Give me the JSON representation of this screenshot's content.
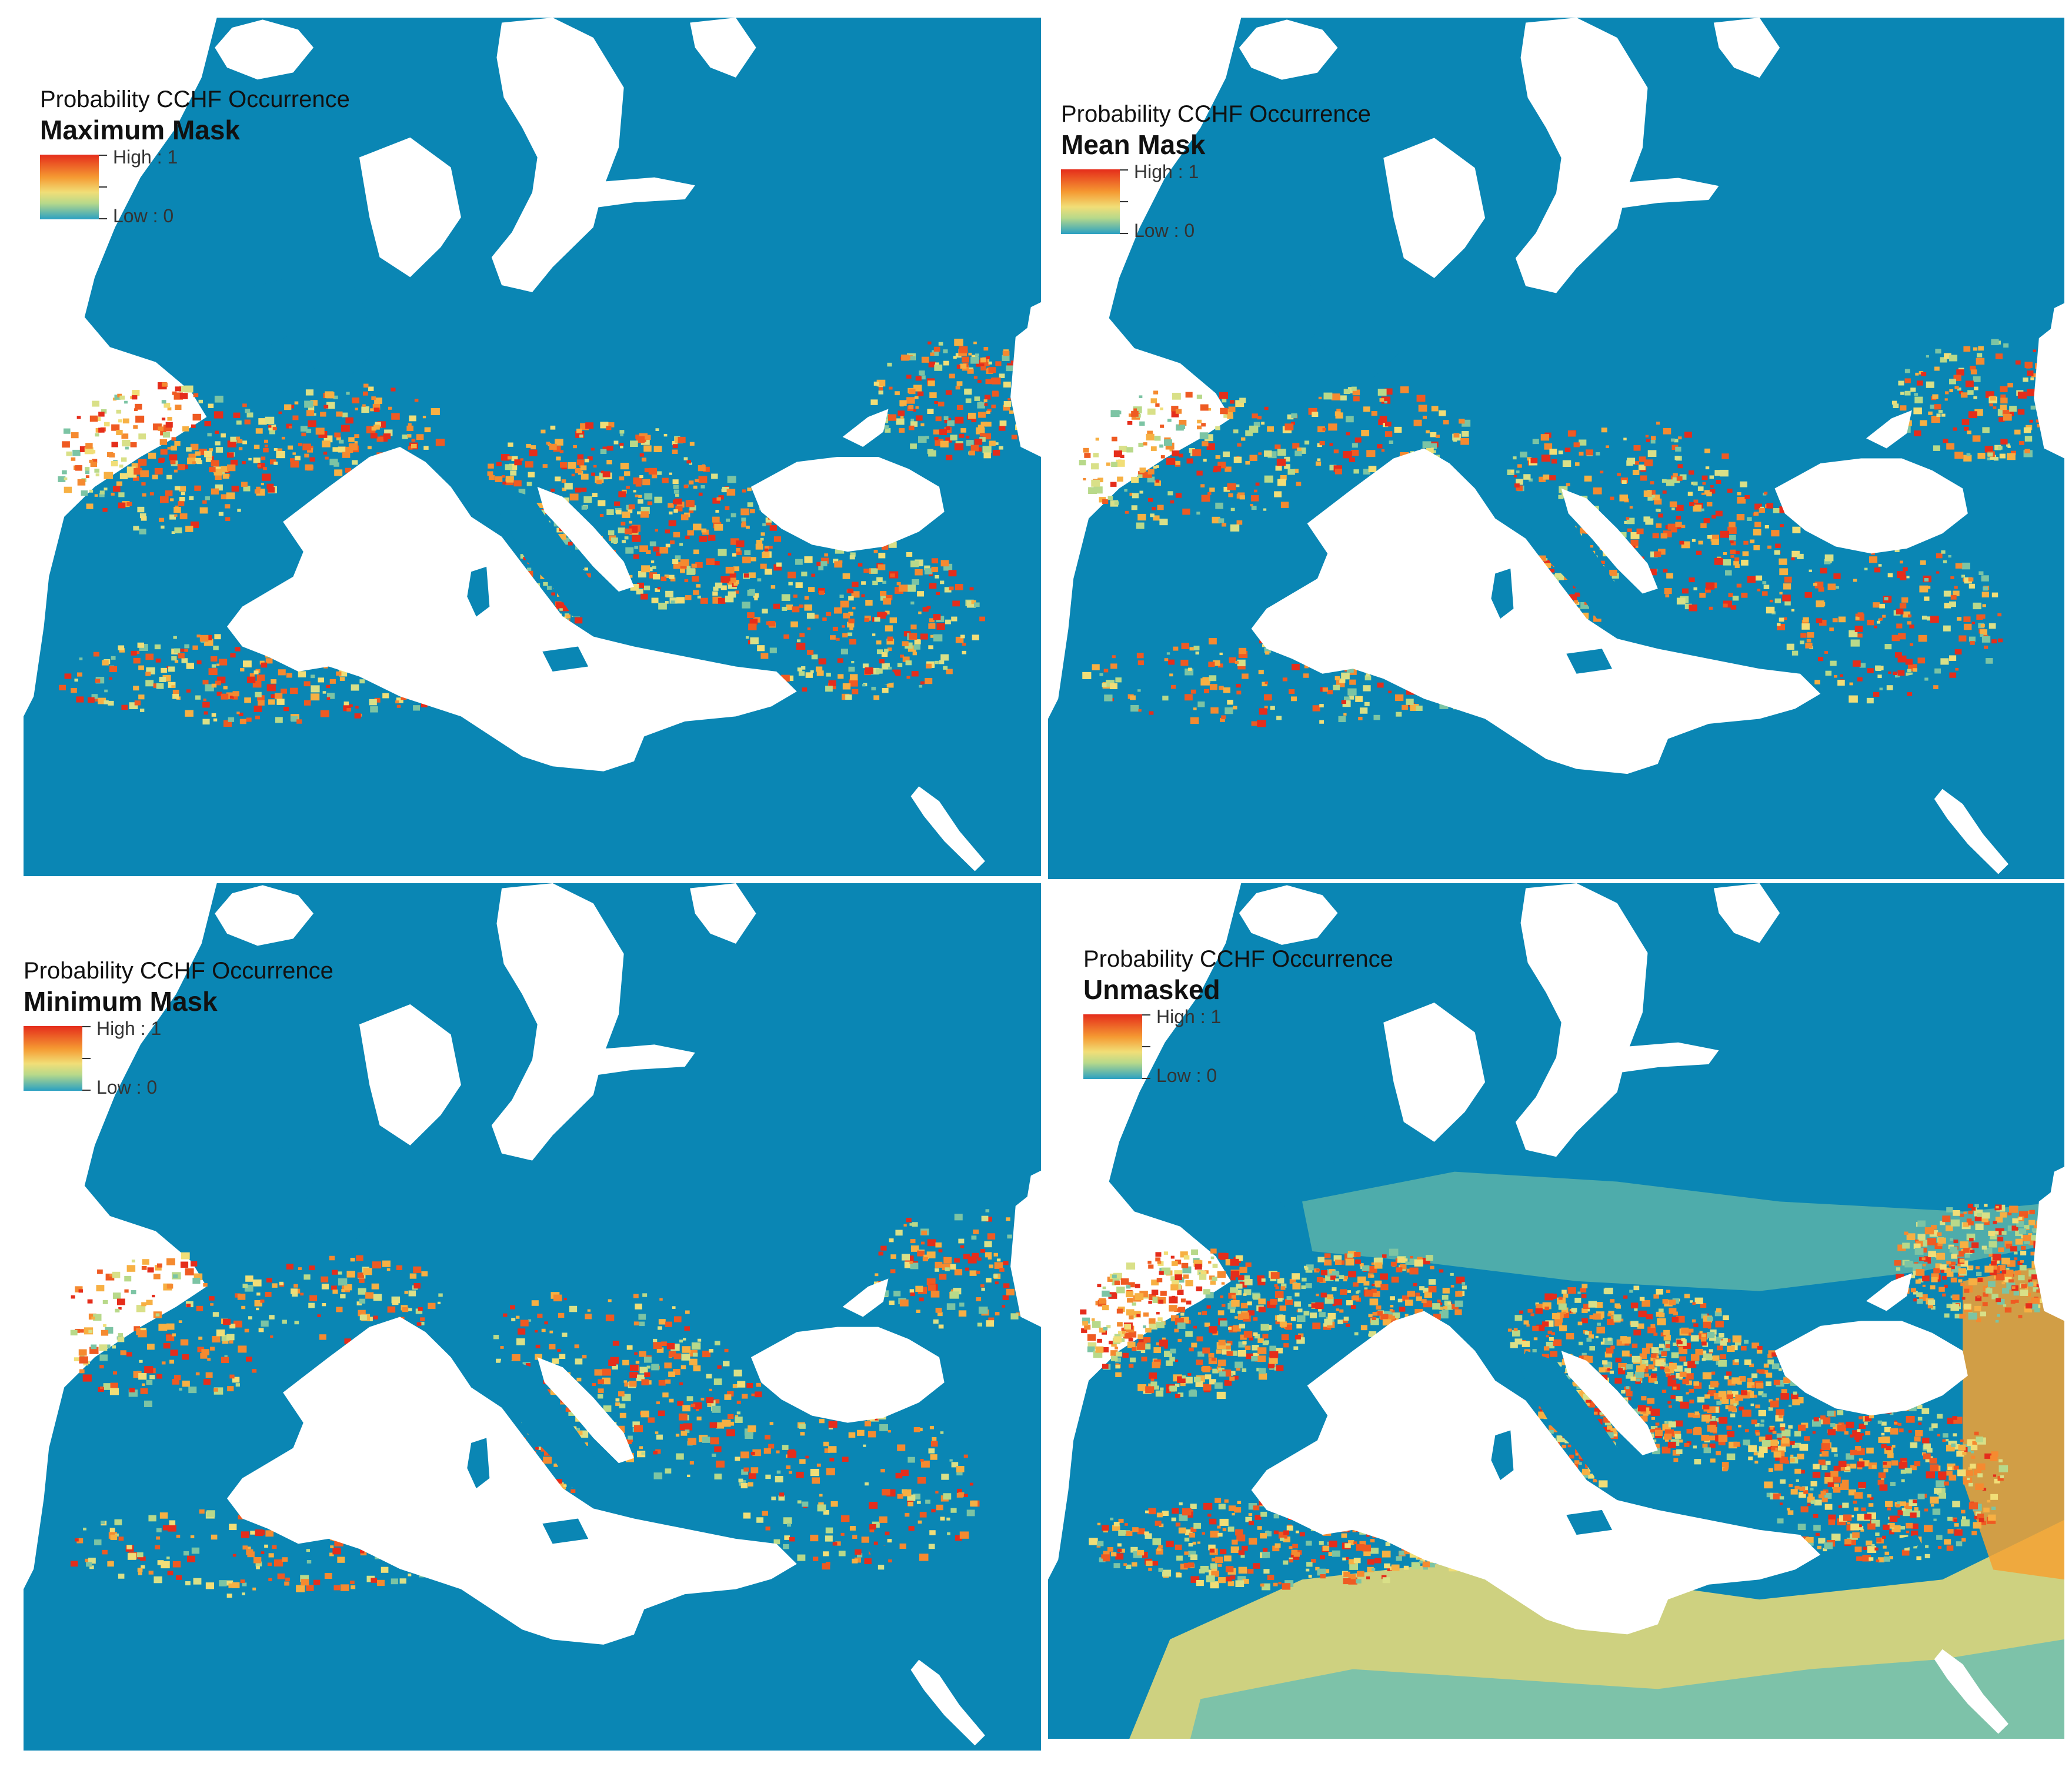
{
  "colors": {
    "sea": "#0a86b4",
    "land_blank": "#ffffff",
    "high": "#e52d1b",
    "mid": "#f1de77",
    "low": "#2aa0c2"
  },
  "legend_common": {
    "title": "Probability CCHF Occurrence",
    "high_label": "High : 1",
    "low_label": "Low : 0"
  },
  "panels": [
    {
      "subtitle": "Maximum Mask"
    },
    {
      "subtitle": "Mean Mask"
    },
    {
      "subtitle": "Minimum Mask"
    },
    {
      "subtitle": "Unmasked"
    }
  ]
}
